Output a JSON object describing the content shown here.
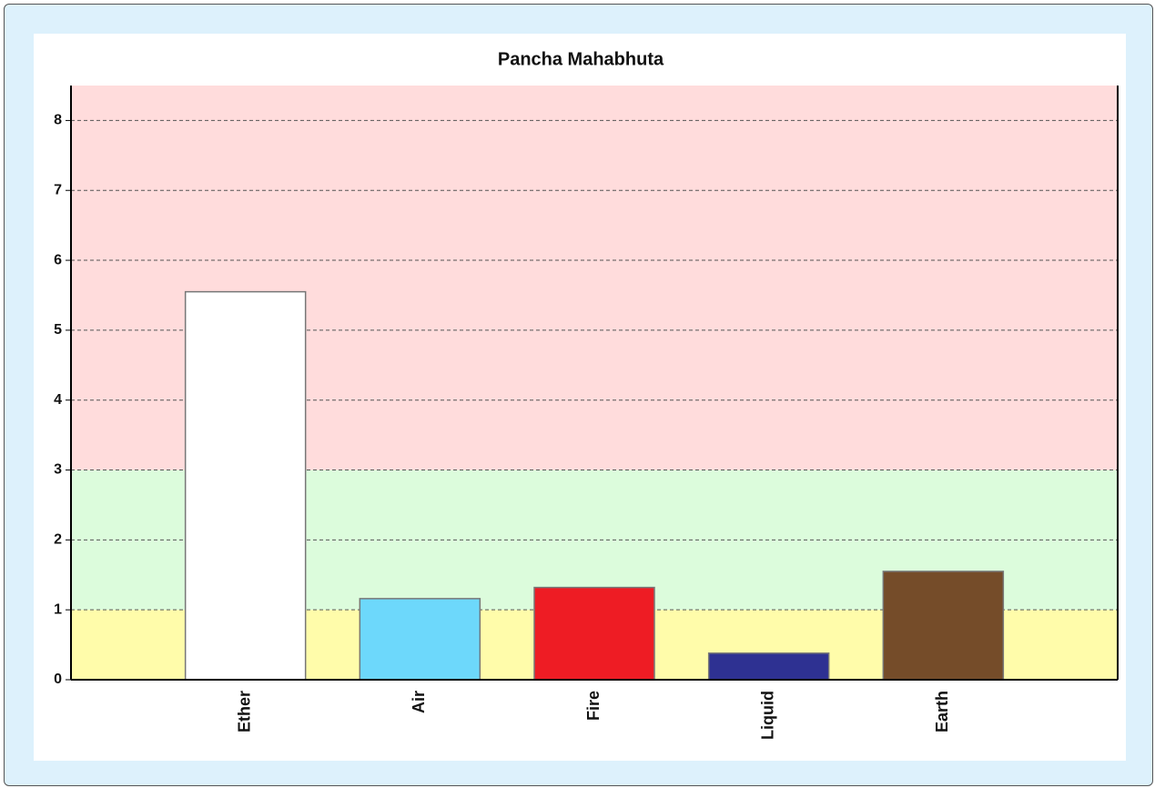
{
  "chart_data": {
    "type": "bar",
    "title": "Pancha Mahabhuta",
    "categories": [
      "Ether",
      "Air",
      "Fire",
      "Liquid",
      "Earth"
    ],
    "values": [
      5.55,
      1.16,
      1.32,
      0.38,
      1.55
    ],
    "colors": [
      "#ffffff",
      "#6dd8fb",
      "#ee1c24",
      "#2e3192",
      "#754c29"
    ],
    "ylim": [
      0,
      8.5
    ],
    "yticks": [
      0,
      1,
      2,
      3,
      4,
      5,
      6,
      7,
      8
    ],
    "grid": true,
    "bands": [
      {
        "from": 0,
        "to": 1,
        "color": "#fffcaa"
      },
      {
        "from": 1,
        "to": 3,
        "color": "#dcfcdc"
      },
      {
        "from": 3,
        "to": 8.5,
        "color": "#ffdcdc"
      }
    ]
  }
}
